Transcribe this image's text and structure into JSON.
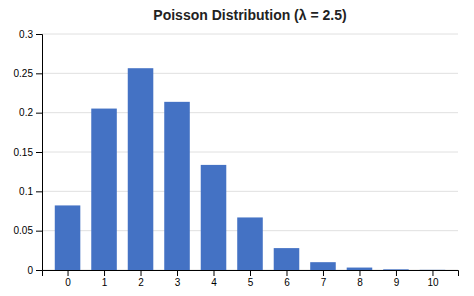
{
  "chart_data": {
    "type": "bar",
    "title": "Poisson Distribution (λ = 2.5)",
    "x": [
      0,
      1,
      2,
      3,
      4,
      5,
      6,
      7,
      8,
      9,
      10
    ],
    "values": [
      0.082085,
      0.205212,
      0.256516,
      0.213763,
      0.133602,
      0.066801,
      0.027834,
      0.009941,
      0.003106,
      0.000863,
      0.000216
    ],
    "color": "#4472C4",
    "xlim": [
      -0.7,
      10.7
    ],
    "xticks": [
      0,
      1,
      2,
      3,
      4,
      5,
      6,
      7,
      8,
      9,
      10
    ],
    "ylim": [
      0,
      0.3
    ],
    "yticks": [
      0,
      0.05,
      0.1,
      0.15,
      0.2,
      0.25,
      0.3
    ],
    "grid": true
  }
}
